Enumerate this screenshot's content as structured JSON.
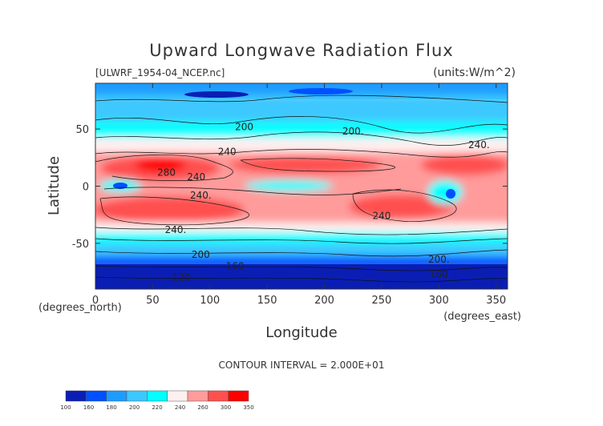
{
  "chart_data": {
    "type": "heatmap",
    "title": "Upward Longwave Radiation Flux",
    "dataset_label": "[ULWRF_1954-04_NCEP.nc]",
    "units_label": "(units:W/m^2)",
    "xlabel": "Longitude",
    "ylabel": "Latitude",
    "x_unit_label": "(degrees_east)",
    "y_unit_label": "(degrees_north)",
    "xlim": [
      0,
      360
    ],
    "ylim": [
      -90,
      90
    ],
    "x_ticks": [
      0,
      50,
      100,
      150,
      200,
      250,
      300,
      350
    ],
    "y_ticks": [
      -50,
      0,
      50
    ],
    "contour_interval_text": "CONTOUR INTERVAL = 2.000E+01",
    "colorbar": {
      "levels": [
        100,
        160,
        180,
        200,
        220,
        240,
        260,
        280,
        300,
        350
      ],
      "tick_labels": [
        "100",
        "160",
        "180",
        "200",
        "220",
        "240",
        "260",
        "300",
        "350"
      ],
      "colors": [
        "#0a1eb4",
        "#0050ff",
        "#1e9bff",
        "#3cc8ff",
        "#00ffff",
        "#fff0f0",
        "#ff9b9b",
        "#ff5050",
        "#ff0000"
      ]
    },
    "contour_labels": [
      {
        "text": "200",
        "lon": 130,
        "lat": 52
      },
      {
        "text": "200.",
        "lon": 225,
        "lat": 48
      },
      {
        "text": "240",
        "lon": 115,
        "lat": 30
      },
      {
        "text": "240.",
        "lon": 335,
        "lat": 36
      },
      {
        "text": "280",
        "lon": 62,
        "lat": 12
      },
      {
        "text": "240",
        "lon": 88,
        "lat": 8
      },
      {
        "text": "240.",
        "lon": 92,
        "lat": -8
      },
      {
        "text": "240",
        "lon": 250,
        "lat": -26
      },
      {
        "text": "240.",
        "lon": 70,
        "lat": -38
      },
      {
        "text": "200",
        "lon": 92,
        "lat": -60
      },
      {
        "text": "160",
        "lon": 122,
        "lat": -70
      },
      {
        "text": "120",
        "lon": 75,
        "lat": -80
      },
      {
        "text": "200.",
        "lon": 300,
        "lat": -64
      },
      {
        "text": "160",
        "lon": 300,
        "lat": -77
      }
    ]
  }
}
